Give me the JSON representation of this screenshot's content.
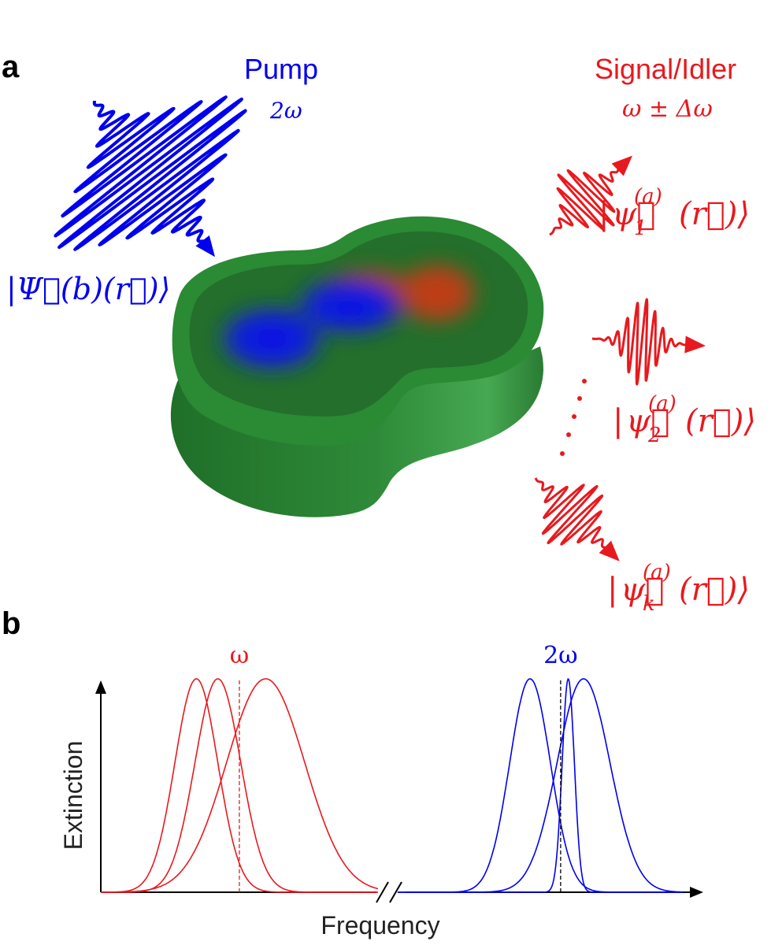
{
  "panel_a": {
    "label": "a",
    "pump": {
      "title": "Pump",
      "frequency": "2ω",
      "state": "|Ψ⃗(b)(r⃗)⟩",
      "color": "#0000ee"
    },
    "signal_idler": {
      "title": "Signal/Idler",
      "frequency": "ω ± Δω",
      "color": "#e8191e",
      "modes": [
        {
          "ket_open": "|",
          "psi": "ψ⃗",
          "sub": "1",
          "sup": "(a)",
          "arg": "(r⃗)⟩"
        },
        {
          "ket_open": "|",
          "psi": "ψ⃗",
          "sub": "2",
          "sup": "(a)",
          "arg": "(r⃗)⟩"
        },
        {
          "ket_open": "|",
          "psi": "ψ⃗",
          "sub": "k",
          "sup": "(a)",
          "arg": "(r⃗)⟩"
        }
      ]
    },
    "particle_color": "#2b8a34"
  },
  "panel_b": {
    "label": "b",
    "chart_data": {
      "type": "line",
      "xlabel": "Frequency",
      "ylabel": "Extinction",
      "axis_break": true,
      "groups": [
        {
          "label": "ω",
          "color": "#e8191e",
          "center": 0.29,
          "peaks": [
            {
              "center": 0.2,
              "width": 0.045,
              "height": 1.0
            },
            {
              "center": 0.245,
              "width": 0.048,
              "height": 1.0
            },
            {
              "center": 0.345,
              "width": 0.082,
              "height": 1.0
            }
          ]
        },
        {
          "label": "2ω",
          "color": "#0000ee",
          "center": 0.94,
          "peaks": [
            {
              "center": 0.88,
              "width": 0.04,
              "height": 1.0
            },
            {
              "center": 0.955,
              "width": 0.012,
              "height": 1.0
            },
            {
              "center": 0.985,
              "width": 0.052,
              "height": 1.0
            }
          ]
        }
      ]
    }
  }
}
